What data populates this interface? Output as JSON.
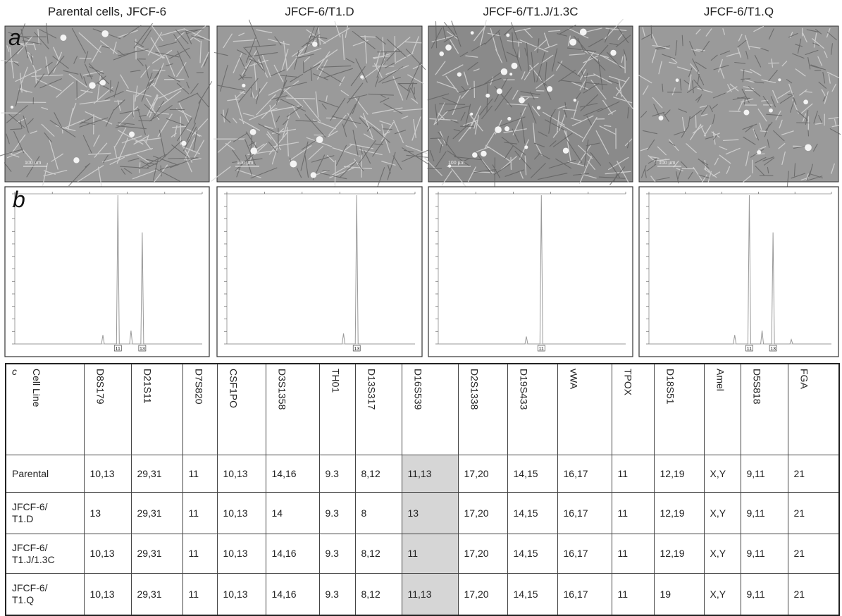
{
  "panels": {
    "titles": [
      "Parental cells, JFCF-6",
      "JFCF-6/T1.D",
      "JFCF-6/T1.J/1.3C",
      "JFCF-6/T1.Q"
    ],
    "labels": [
      "a",
      "b",
      "c"
    ],
    "scale_bar": "100 µm",
    "peak_labels": [
      [
        "11",
        "13"
      ],
      [
        "13"
      ],
      [
        "11"
      ],
      [
        "11",
        "13"
      ]
    ]
  },
  "table": {
    "header": [
      "Cell Line",
      "D8S179",
      "D21S11",
      "D7S820",
      "CSF1PO",
      "D3S1358",
      "TH01",
      "D13S317",
      "D16S539",
      "D2S1338",
      "D19S433",
      "vWA",
      "TPOX",
      "D18S51",
      "Amel",
      "D5S818",
      "FGA"
    ],
    "rows": [
      [
        "Parental",
        "10,13",
        "29,31",
        "11",
        "10,13",
        "14,16",
        "9.3",
        "8,12",
        "11,13",
        "17,20",
        "14,15",
        "16,17",
        "11",
        "12,19",
        "X,Y",
        "9,11",
        "21"
      ],
      [
        "JFCF-6/\nT1.D",
        "13",
        "29,31",
        "11",
        "10,13",
        "14",
        "9.3",
        "8",
        "13",
        "17,20",
        "14,15",
        "16,17",
        "11",
        "12,19",
        "X,Y",
        "9,11",
        "21"
      ],
      [
        "JFCF-6/\nT1.J/1.3C",
        "10,13",
        "29,31",
        "11",
        "10,13",
        "14,16",
        "9.3",
        "8,12",
        "11",
        "17,20",
        "14,15",
        "16,17",
        "11",
        "12,19",
        "X,Y",
        "9,11",
        "21"
      ],
      [
        "JFCF-6/\nT1.Q",
        "10,13",
        "29,31",
        "11",
        "10,13",
        "14,16",
        "9.3",
        "8,12",
        "11,13",
        "17,20",
        "14,15",
        "16,17",
        "11",
        "19",
        "X,Y",
        "9,11",
        "21"
      ]
    ]
  }
}
